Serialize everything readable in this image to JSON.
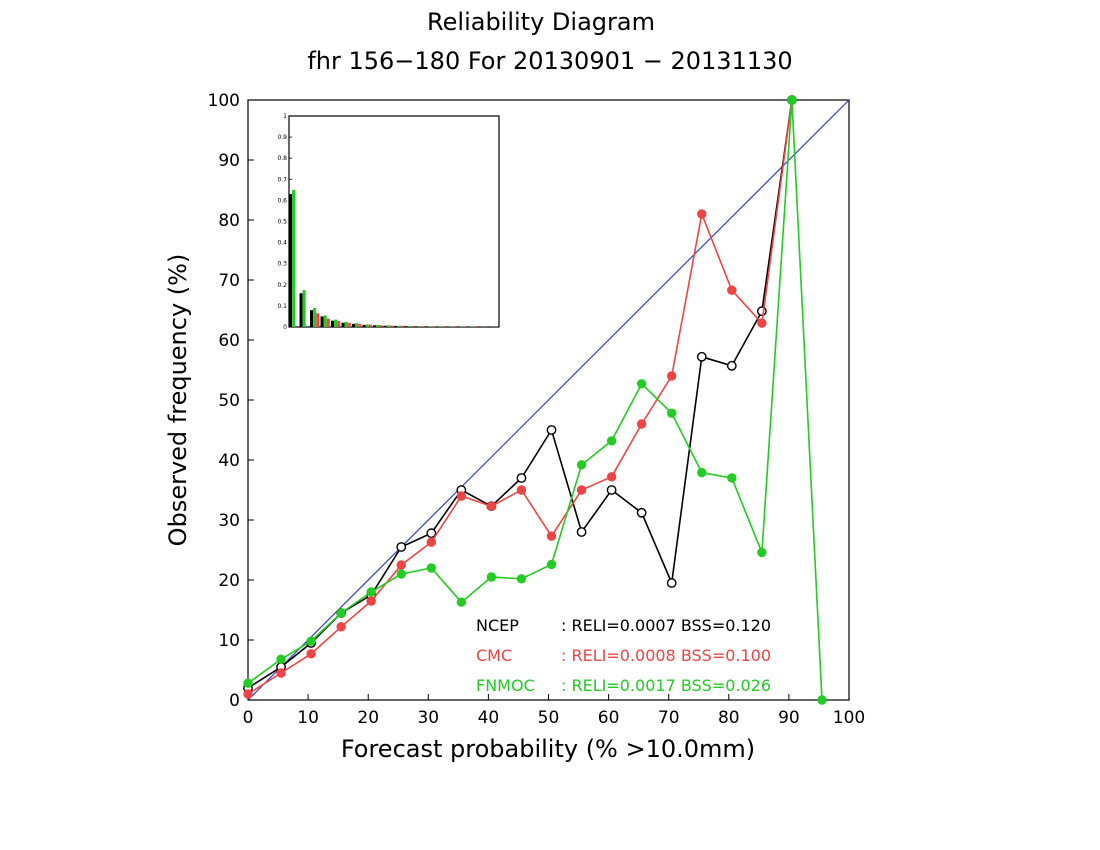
{
  "chart_data": {
    "type": "line",
    "title": "Reliability Diagram",
    "subtitle": "fhr 156−180 For 20130901 − 20131130",
    "xlabel": "Forecast probability (% >10.0mm)",
    "ylabel": "Observed frequency (%)",
    "xlim": [
      0,
      100
    ],
    "ylim": [
      0,
      100
    ],
    "xticks": [
      "0",
      "10",
      "20",
      "30",
      "40",
      "50",
      "60",
      "70",
      "80",
      "90",
      "100"
    ],
    "yticks": [
      "0",
      "10",
      "20",
      "30",
      "40",
      "50",
      "60",
      "70",
      "80",
      "90",
      "100"
    ],
    "grid": false,
    "diagonal_color": "#3344bb",
    "legend_position": "bottom-right",
    "series": [
      {
        "name": "NCEP",
        "color": "#000000",
        "marker": "open-circle",
        "legend_text": ": RELI=0.0007  BSS=0.120",
        "x": [
          0,
          5.5,
          10.5,
          15.5,
          20.5,
          25.5,
          30.5,
          35.5,
          40.5,
          45.5,
          50.5,
          55.5,
          60.5,
          65.5,
          70.5,
          75.5,
          80.5,
          85.5,
          90.5
        ],
        "y": [
          2,
          5.5,
          9.5,
          14.5,
          17.5,
          25.5,
          27.8,
          35,
          32.3,
          37,
          45,
          28,
          35,
          31.2,
          19.5,
          57.2,
          55.7,
          64.8,
          100
        ]
      },
      {
        "name": "CMC",
        "color": "#ee4444",
        "marker": "filled-circle",
        "legend_text": ": RELI=0.0008  BSS=0.100",
        "x": [
          0,
          5.5,
          10.5,
          15.5,
          20.5,
          25.5,
          30.5,
          35.5,
          40.5,
          45.5,
          50.5,
          55.5,
          60.5,
          65.5,
          70.5,
          75.5,
          80.5,
          85.5,
          90.5
        ],
        "y": [
          1,
          4.5,
          7.7,
          12.2,
          16.5,
          22.5,
          26.3,
          34,
          32.3,
          35,
          27.3,
          35,
          37.2,
          46,
          54,
          81,
          68.3,
          62.8,
          100
        ]
      },
      {
        "name": "FNMOC",
        "color": "#22cc22",
        "marker": "filled-circle",
        "legend_text": ": RELI=0.0017  BSS=0.026",
        "x": [
          0,
          5.5,
          10.5,
          15.5,
          20.5,
          25.5,
          30.5,
          35.5,
          40.5,
          45.5,
          50.5,
          55.5,
          60.5,
          65.5,
          70.5,
          75.5,
          80.5,
          85.5,
          90.5,
          95.5
        ],
        "y": [
          2.8,
          6.8,
          9.8,
          14.5,
          18,
          21,
          22,
          16.3,
          20.5,
          20.2,
          22.6,
          39.2,
          43.2,
          52.7,
          47.8,
          37.9,
          37,
          24.6,
          100,
          0
        ]
      }
    ],
    "inset": {
      "type": "bar",
      "ylim": [
        0,
        1
      ],
      "yticks": [
        "0",
        "0.1",
        "0.2",
        "0.3",
        "0.4",
        "0.5",
        "0.6",
        "0.7",
        "0.8",
        "0.9",
        "1"
      ],
      "bins": 20,
      "series": [
        {
          "name": "NCEP",
          "color": "#000000",
          "values": [
            0.63,
            0.16,
            0.08,
            0.05,
            0.03,
            0.02,
            0.015,
            0.01,
            0.008,
            0.006,
            0.005,
            0.004,
            0.003,
            0.003,
            0.002,
            0.002,
            0.002,
            0.001,
            0.001,
            0.001
          ]
        },
        {
          "name": "FNMOC",
          "color": "#22cc22",
          "values": [
            0.65,
            0.175,
            0.09,
            0.055,
            0.035,
            0.025,
            0.018,
            0.012,
            0.01,
            0.008,
            0.006,
            0.005,
            0.004,
            0.003,
            0.003,
            0.002,
            0.002,
            0.002,
            0.001,
            0.001
          ]
        },
        {
          "name": "CMC",
          "color": "#ee4444",
          "values": [
            0.0,
            0.0,
            0.065,
            0.04,
            0.028,
            0.02,
            0.015,
            0.012,
            0.009,
            0.007,
            0.006,
            0.005,
            0.004,
            0.003,
            0.003,
            0.002,
            0.002,
            0.002,
            0.001,
            0.001
          ]
        }
      ]
    }
  }
}
